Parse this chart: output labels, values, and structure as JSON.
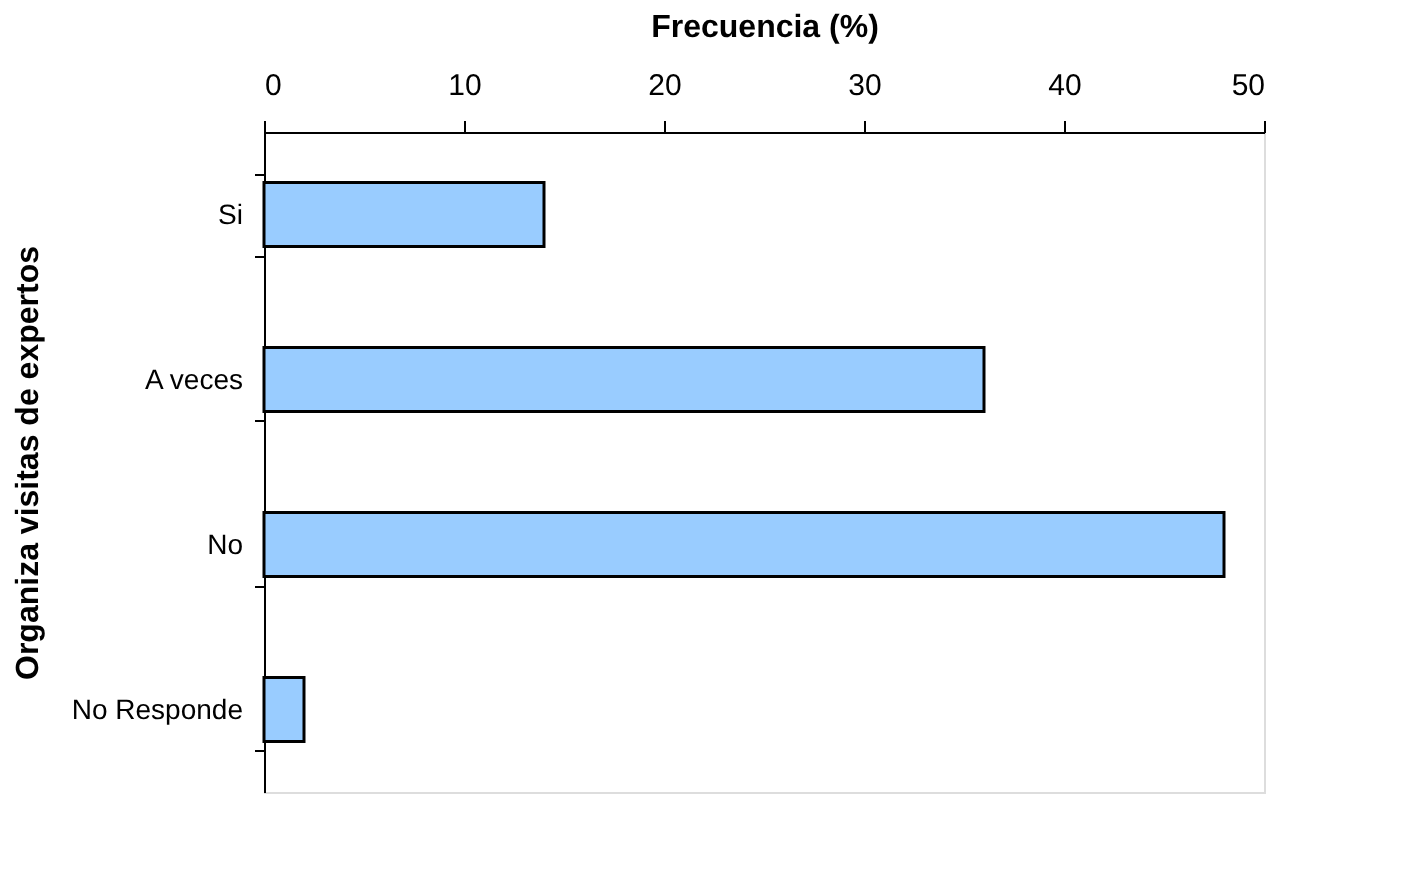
{
  "chart_data": {
    "type": "bar",
    "orientation": "horizontal",
    "xlabel": "Frecuencia (%)",
    "ylabel": "Organiza visitas de expertos",
    "categories": [
      "Si",
      "A veces",
      "No",
      "No Responde"
    ],
    "values": [
      14,
      36,
      48,
      2
    ],
    "color": "#99ccff",
    "xlim": [
      0,
      50
    ],
    "xticks": [
      0,
      10,
      20,
      30,
      40,
      50
    ],
    "grid": false
  }
}
